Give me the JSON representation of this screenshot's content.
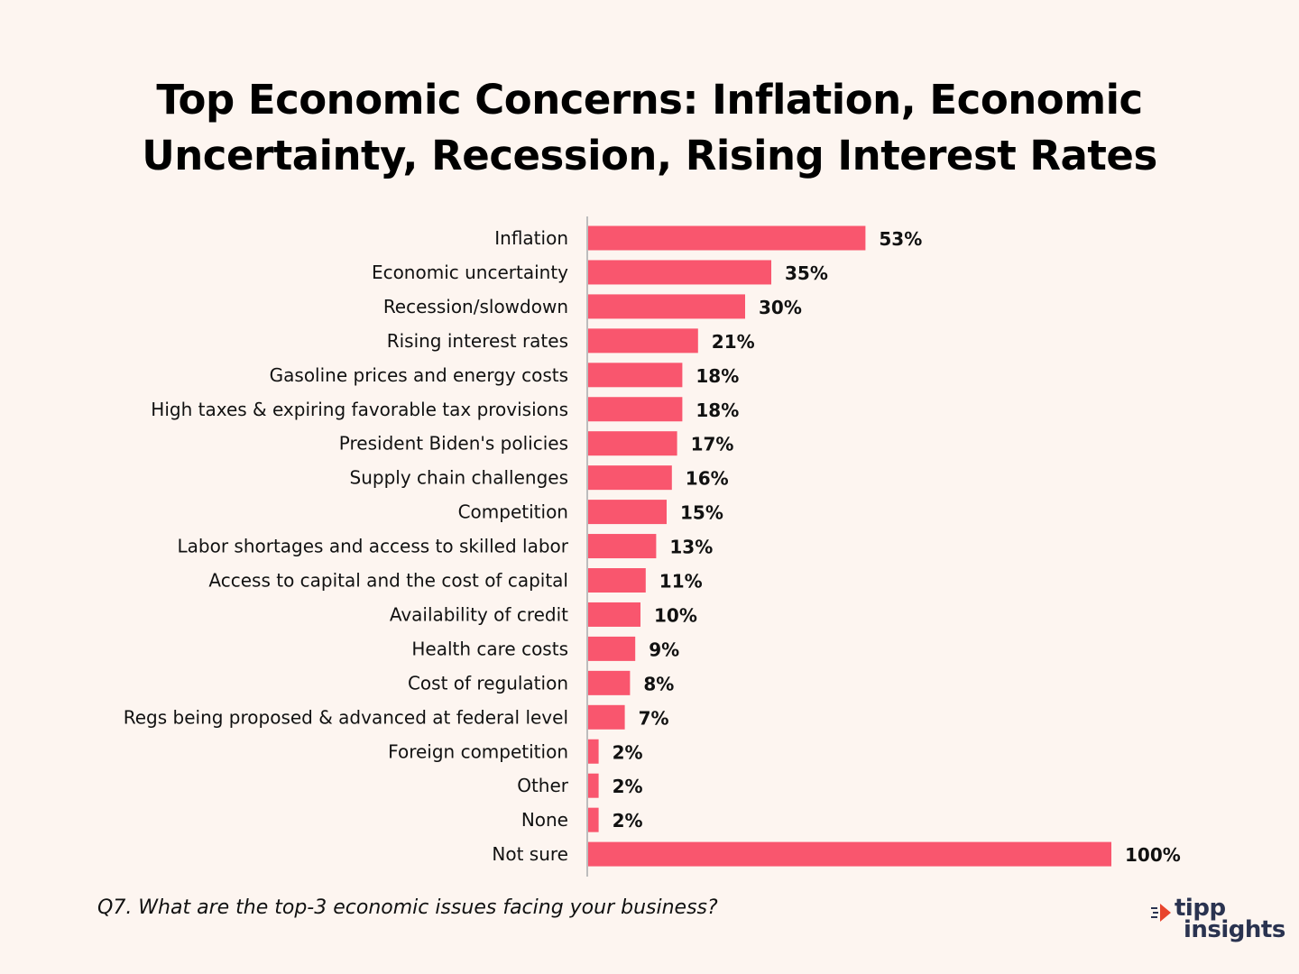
{
  "chart_data": {
    "type": "bar",
    "orientation": "horizontal",
    "title": [
      "Top Economic Concerns: Inflation, Economic",
      "Uncertainty, Recession, Rising Interest Rates"
    ],
    "categories": [
      "Inflation",
      "Economic uncertainty",
      "Recession/slowdown",
      "Rising interest rates",
      "Gasoline prices and energy costs",
      "High taxes & expiring favorable tax provisions",
      "President Biden's policies",
      "Supply chain challenges",
      "Competition",
      "Labor shortages and access to skilled labor",
      "Access to capital and the cost of capital",
      "Availability of credit",
      "Health care costs",
      "Cost of regulation",
      "Regs being proposed & advanced at federal level",
      "Foreign competition",
      "Other",
      "None",
      "Not sure"
    ],
    "values": [
      53,
      35,
      30,
      21,
      18,
      18,
      17,
      16,
      15,
      13,
      11,
      10,
      9,
      8,
      7,
      2,
      2,
      2,
      100
    ],
    "value_labels": [
      "53%",
      "35%",
      "30%",
      "21%",
      "18%",
      "18%",
      "17%",
      "16%",
      "15%",
      "13%",
      "11%",
      "10%",
      "9%",
      "8%",
      "7%",
      "2%",
      "2%",
      "2%",
      "100%"
    ],
    "xlim": [
      0,
      100
    ],
    "xlabel": "",
    "ylabel": "",
    "grid": false,
    "bar_color": "#f9566e"
  },
  "footnote": "Q7. What are the top-3 economic issues facing your business?",
  "logo": {
    "line1": "tipp",
    "line2": "insights",
    "accent_color": "#e8442c",
    "text_color": "#2a3350"
  }
}
